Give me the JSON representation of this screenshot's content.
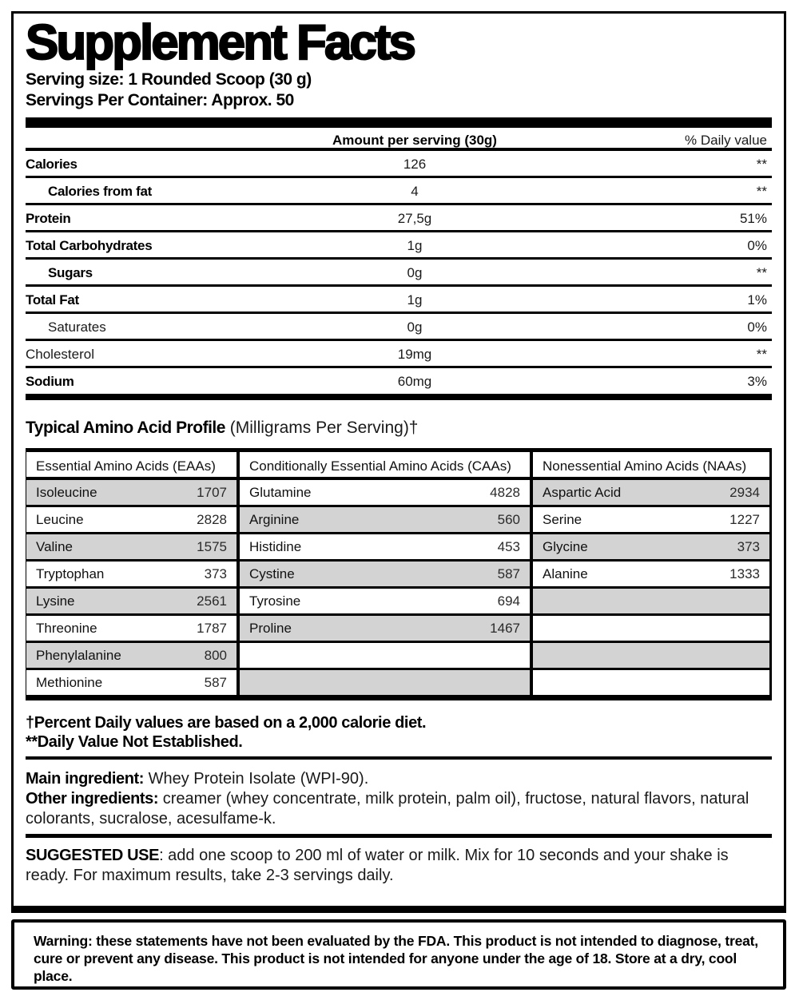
{
  "label": {
    "title": "Supplement Facts",
    "serving_size": "Serving size: 1 Rounded Scoop (30 g)",
    "servings_per_container": "Servings Per Container: Approx. 50"
  },
  "nutrition": {
    "amount_header": "Amount per serving (30g)",
    "dv_header": "% Daily value",
    "rows": [
      {
        "name": "Calories",
        "amount": "126",
        "dv": "**"
      },
      {
        "name": "Calories from fat",
        "amount": "4",
        "dv": "**"
      },
      {
        "name": "Protein",
        "amount": "27,5g",
        "dv": "51%"
      },
      {
        "name": "Total Carbohydrates",
        "amount": "1g",
        "dv": "0%"
      },
      {
        "name": "Sugars",
        "amount": "0g",
        "dv": "**"
      },
      {
        "name": "Total Fat",
        "amount": "1g",
        "dv": "1%"
      },
      {
        "name": "Saturates",
        "amount": "0g",
        "dv": "0%"
      },
      {
        "name": "Cholesterol",
        "amount": "19mg",
        "dv": "**"
      },
      {
        "name": "Sodium",
        "amount": "60mg",
        "dv": "3%"
      }
    ]
  },
  "amino": {
    "heading_bold": "Typical Amino Acid Profile",
    "heading_rest": " (Milligrams Per Serving)†",
    "columns": [
      {
        "header": "Essential Amino Acids (EAAs)",
        "rows": [
          {
            "name": "Isoleucine",
            "value": "1707"
          },
          {
            "name": "Leucine",
            "value": "2828"
          },
          {
            "name": "Valine",
            "value": "1575"
          },
          {
            "name": "Tryptophan",
            "value": "373"
          },
          {
            "name": "Lysine",
            "value": "2561"
          },
          {
            "name": "Threonine",
            "value": "1787"
          },
          {
            "name": "Phenylalanine",
            "value": "800"
          },
          {
            "name": "Methionine",
            "value": "587"
          }
        ]
      },
      {
        "header": "Conditionally Essential Amino Acids (CAAs)",
        "rows": [
          {
            "name": "Glutamine",
            "value": "4828"
          },
          {
            "name": "Arginine",
            "value": "560"
          },
          {
            "name": "Histidine",
            "value": "453"
          },
          {
            "name": "Cystine",
            "value": "587"
          },
          {
            "name": "Tyrosine",
            "value": "694"
          },
          {
            "name": "Proline",
            "value": "1467"
          },
          {
            "name": "",
            "value": ""
          },
          {
            "name": "",
            "value": ""
          }
        ]
      },
      {
        "header": "Nonessential Amino Acids (NAAs)",
        "rows": [
          {
            "name": "Aspartic Acid",
            "value": "2934"
          },
          {
            "name": "Serine",
            "value": "1227"
          },
          {
            "name": "Glycine",
            "value": "373"
          },
          {
            "name": "Alanine",
            "value": "1333"
          },
          {
            "name": "",
            "value": ""
          },
          {
            "name": "",
            "value": ""
          },
          {
            "name": "",
            "value": ""
          },
          {
            "name": "",
            "value": ""
          }
        ]
      }
    ]
  },
  "footnotes": {
    "daily_values": "†Percent Daily values are based on a 2,000 calorie diet.",
    "not_established": "**Daily Value Not Established."
  },
  "ingredients": {
    "main_label": "Main ingredient:",
    "main_text": " Whey Protein Isolate (WPI-90).",
    "other_label": "Other ingredients:",
    "other_text": " creamer (whey concentrate, milk protein, palm oil), fructose, natural flavors, natural colorants, sucralose, acesulfame-k."
  },
  "suggested_use": {
    "label": "SUGGESTED USE",
    "text": ": add one scoop to 200 ml of water or milk. Mix for 10 seconds and your shake is ready. For maximum results, take 2-3 servings daily."
  },
  "warning": "Warning: these statements have not been evaluated by the FDA. This product is not intended to diagnose, treat, cure or prevent any disease. This product is not intended for anyone under the age of 18. Store at a dry, cool place.",
  "colors": {
    "ink": "#000000",
    "cell_gray": "#d3d3d3"
  }
}
